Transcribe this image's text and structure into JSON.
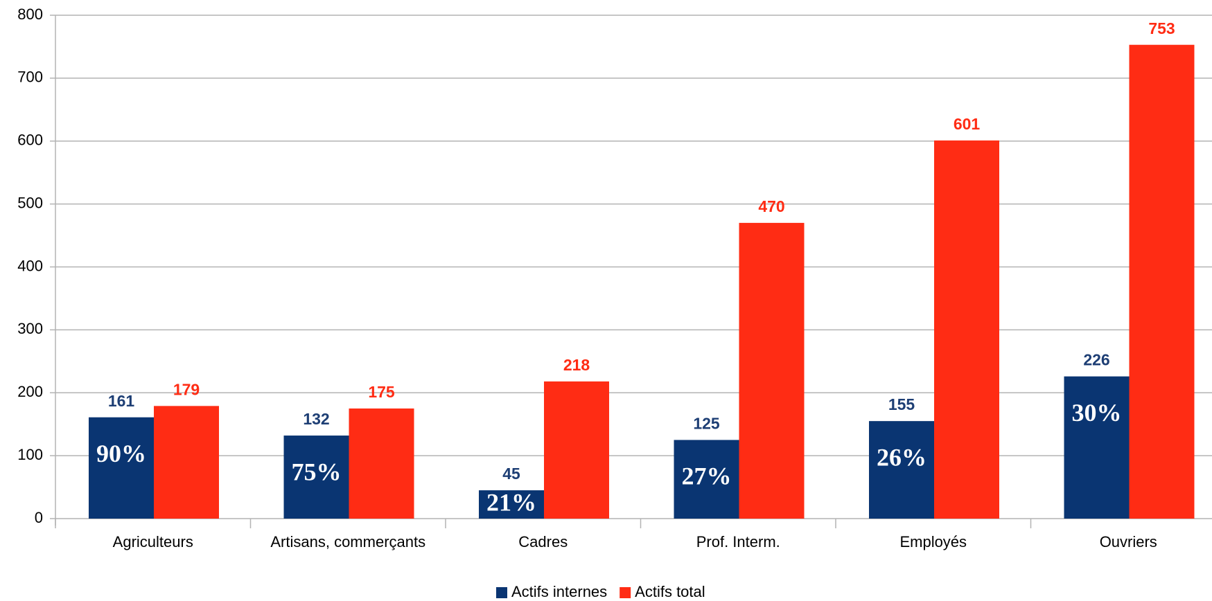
{
  "chart_data": {
    "type": "bar",
    "categories": [
      "Agriculteurs",
      "Artisans, commerçants",
      "Cadres",
      "Prof. Interm.",
      "Employés",
      "Ouvriers"
    ],
    "series": [
      {
        "name": "Actifs internes",
        "color": "#0a3572",
        "values": [
          161,
          132,
          45,
          125,
          155,
          226
        ]
      },
      {
        "name": "Actifs total",
        "color": "#ff2c14",
        "values": [
          179,
          175,
          218,
          470,
          601,
          753
        ]
      }
    ],
    "annotations": [
      "90%",
      "75%",
      "21%",
      "27%",
      "26%",
      "30%"
    ],
    "ylim": [
      0,
      800
    ],
    "yticks": [
      0,
      100,
      200,
      300,
      400,
      500,
      600,
      700,
      800
    ],
    "grid": true,
    "legend": "bottom"
  }
}
